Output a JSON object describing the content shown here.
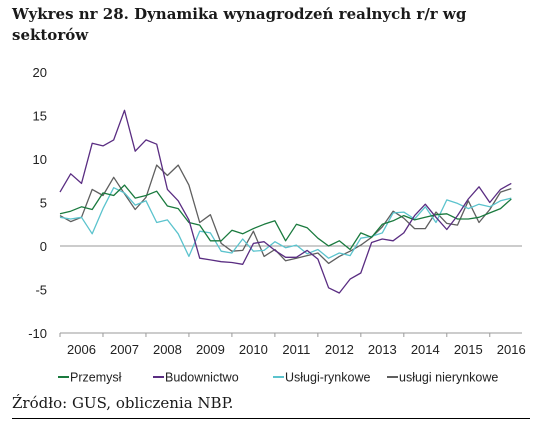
{
  "figure": {
    "caption": "Wykres nr   28. Dynamika wynagrodzeń realnych r/r wg sektorów",
    "source": "Źródło: GUS, obliczenia NBP."
  },
  "chart_data": {
    "type": "line",
    "title": "",
    "xlabel": "",
    "ylabel": "",
    "x_ticks": [
      "2006",
      "2007",
      "2008",
      "2009",
      "2010",
      "2011",
      "2012",
      "2013",
      "2014",
      "2015",
      "2016"
    ],
    "xlim": [
      2006,
      2016.75
    ],
    "ylim": [
      -10,
      20
    ],
    "y_ticks": [
      20,
      15,
      10,
      5,
      0,
      -5,
      -10
    ],
    "grid": false,
    "legend_position": "bottom",
    "x": [
      2006.0,
      2006.25,
      2006.5,
      2006.75,
      2007.0,
      2007.25,
      2007.5,
      2007.75,
      2008.0,
      2008.25,
      2008.5,
      2008.75,
      2009.0,
      2009.25,
      2009.5,
      2009.75,
      2010.0,
      2010.25,
      2010.5,
      2010.75,
      2011.0,
      2011.25,
      2011.5,
      2011.75,
      2012.0,
      2012.25,
      2012.5,
      2012.75,
      2013.0,
      2013.25,
      2013.5,
      2013.75,
      2014.0,
      2014.25,
      2014.5,
      2014.75,
      2015.0,
      2015.25,
      2015.5,
      2015.75,
      2016.0,
      2016.25,
      2016.5
    ],
    "series": [
      {
        "name": "Przemysł",
        "color": "#1a7a3e",
        "values": [
          3.7,
          4.0,
          4.5,
          4.2,
          6.1,
          5.8,
          7.0,
          5.5,
          5.8,
          6.3,
          4.6,
          4.3,
          2.7,
          2.4,
          0.6,
          0.6,
          1.8,
          1.4,
          2.0,
          2.5,
          2.9,
          0.6,
          2.5,
          2.1,
          0.9,
          0.0,
          0.6,
          -0.4,
          1.5,
          1.0,
          2.5,
          2.9,
          3.5,
          3.0,
          3.3,
          3.6,
          3.7,
          3.1,
          3.1,
          3.3,
          3.8,
          4.3,
          5.4
        ]
      },
      {
        "name": "Budownictwo",
        "color": "#5a2d82",
        "values": [
          6.2,
          8.3,
          7.2,
          11.8,
          11.5,
          12.2,
          15.6,
          10.9,
          12.2,
          11.7,
          6.5,
          5.2,
          3.0,
          -1.4,
          -1.6,
          -1.8,
          -1.9,
          -2.1,
          0.3,
          0.5,
          -0.5,
          -1.3,
          -1.3,
          -0.5,
          -1.5,
          -4.8,
          -5.4,
          -3.8,
          -3.1,
          0.4,
          0.8,
          0.6,
          1.5,
          3.5,
          4.8,
          3.3,
          1.9,
          3.5,
          5.4,
          6.8,
          5.0,
          6.5,
          7.2
        ]
      },
      {
        "name": "Usługi-rynkowe",
        "color": "#5bc3cd",
        "values": [
          3.3,
          3.1,
          3.3,
          1.4,
          4.3,
          6.7,
          6.1,
          4.7,
          5.2,
          2.7,
          3.0,
          1.4,
          -1.2,
          1.7,
          1.5,
          -0.6,
          -0.8,
          0.8,
          -0.6,
          -0.5,
          0.5,
          -0.2,
          0.1,
          -0.9,
          -0.4,
          -1.4,
          -0.8,
          -1.1,
          0.9,
          1.1,
          1.5,
          3.8,
          3.9,
          3.1,
          4.5,
          2.7,
          5.3,
          4.9,
          4.3,
          4.8,
          4.5,
          5.2,
          5.5
        ]
      },
      {
        "name": "usługi nierynkowe",
        "color": "#5f5f5f",
        "values": [
          3.5,
          2.8,
          3.3,
          6.5,
          5.8,
          7.9,
          6.0,
          4.2,
          5.6,
          9.3,
          8.1,
          9.3,
          7.0,
          2.7,
          3.6,
          0.3,
          -0.6,
          -0.5,
          1.7,
          -1.2,
          -0.4,
          -1.7,
          -1.4,
          -1.1,
          -0.8,
          -2.0,
          -1.2,
          -0.6,
          0.1,
          1.0,
          2.2,
          4.0,
          3.2,
          2.0,
          2.0,
          3.9,
          2.6,
          2.4,
          5.2,
          2.7,
          4.2,
          6.2,
          6.6
        ]
      }
    ]
  }
}
